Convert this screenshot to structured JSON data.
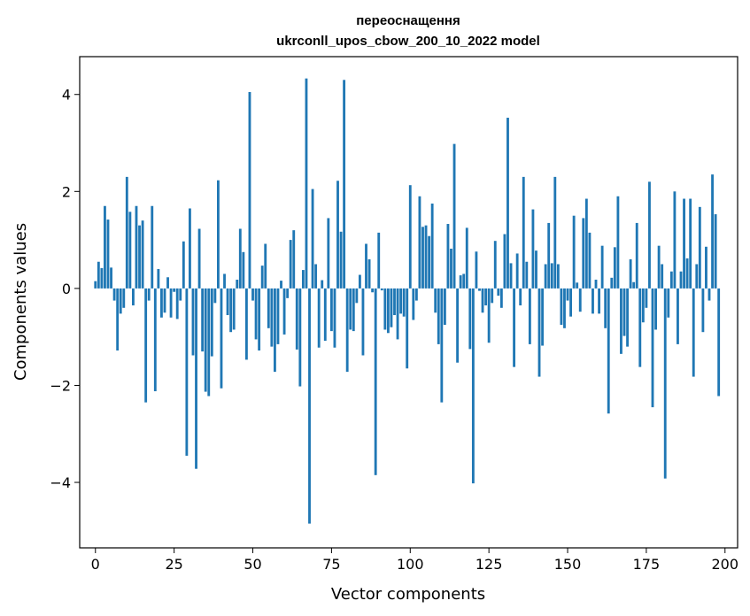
{
  "chart_data": {
    "type": "bar",
    "title": "переоснащення",
    "subtitle": "ukrconll_upos_cbow_200_10_2022 model",
    "xlabel": "Vector components",
    "ylabel": "Components values",
    "xlim": [
      -5,
      204
    ],
    "ylim": [
      -5.35,
      4.78
    ],
    "xticks": [
      0,
      25,
      50,
      75,
      100,
      125,
      150,
      175,
      200
    ],
    "xtick_labels": [
      "0",
      "25",
      "50",
      "75",
      "100",
      "125",
      "150",
      "175",
      "200"
    ],
    "yticks": [
      -4,
      -2,
      0,
      2,
      4
    ],
    "ytick_labels": [
      "−4",
      "−2",
      "0",
      "2",
      "4"
    ],
    "grid": false,
    "bar_color": "#1f77b4",
    "values": [
      0.15,
      0.55,
      0.42,
      1.7,
      1.42,
      0.43,
      -0.25,
      -1.28,
      -0.52,
      -0.4,
      2.3,
      1.58,
      -0.35,
      1.7,
      1.3,
      1.4,
      -2.35,
      -0.25,
      1.7,
      -2.12,
      0.4,
      -0.6,
      -0.5,
      0.23,
      -0.6,
      -0.07,
      -0.63,
      -0.25,
      0.97,
      -3.45,
      1.65,
      -1.38,
      -3.72,
      1.23,
      -1.3,
      -2.13,
      -2.22,
      -1.4,
      -0.3,
      2.23,
      -2.06,
      0.3,
      -0.55,
      -0.9,
      -0.85,
      0.18,
      1.23,
      0.75,
      -1.47,
      4.05,
      -0.25,
      -1.05,
      -1.28,
      0.47,
      0.92,
      -0.82,
      -1.2,
      -1.72,
      -1.15,
      0.16,
      -0.95,
      -0.2,
      1.0,
      1.2,
      -1.26,
      -2.02,
      0.38,
      4.33,
      -4.85,
      2.05,
      0.5,
      -1.22,
      0.17,
      -1.08,
      1.45,
      -0.88,
      -1.22,
      2.22,
      1.17,
      4.3,
      -1.72,
      -0.85,
      -0.88,
      -0.3,
      0.28,
      -1.38,
      0.92,
      0.6,
      -0.08,
      -3.85,
      1.15,
      -0.04,
      -0.85,
      -0.92,
      -0.8,
      -0.55,
      -1.05,
      -0.52,
      -0.58,
      -1.65,
      2.13,
      -0.65,
      -0.25,
      1.9,
      1.27,
      1.3,
      1.08,
      1.75,
      -0.5,
      -1.15,
      -2.35,
      -0.75,
      1.33,
      0.82,
      2.98,
      -1.53,
      0.27,
      0.3,
      1.25,
      -1.25,
      -4.02,
      0.76,
      -0.05,
      -0.5,
      -0.35,
      -1.12,
      -0.3,
      0.98,
      -0.15,
      -0.4,
      1.12,
      3.52,
      0.52,
      -1.62,
      0.72,
      -0.35,
      2.3,
      0.55,
      -1.15,
      1.63,
      0.78,
      -1.82,
      -1.18,
      0.5,
      1.35,
      0.52,
      2.3,
      0.5,
      -0.75,
      -0.82,
      -0.25,
      -0.58,
      1.5,
      0.12,
      -0.48,
      1.45,
      1.85,
      1.15,
      -0.52,
      0.18,
      -0.52,
      0.88,
      -0.82,
      -2.58,
      0.22,
      0.85,
      1.9,
      -1.35,
      -0.98,
      -1.2,
      0.6,
      0.13,
      1.35,
      -1.62,
      -0.7,
      -0.4,
      2.2,
      -2.45,
      -0.85,
      0.88,
      0.5,
      -3.92,
      -0.6,
      0.35,
      2.0,
      -1.15,
      0.35,
      1.85,
      0.62,
      1.85,
      -1.82,
      0.5,
      1.68,
      -0.9,
      0.86,
      -0.25,
      2.35,
      1.53,
      -2.22
    ]
  }
}
